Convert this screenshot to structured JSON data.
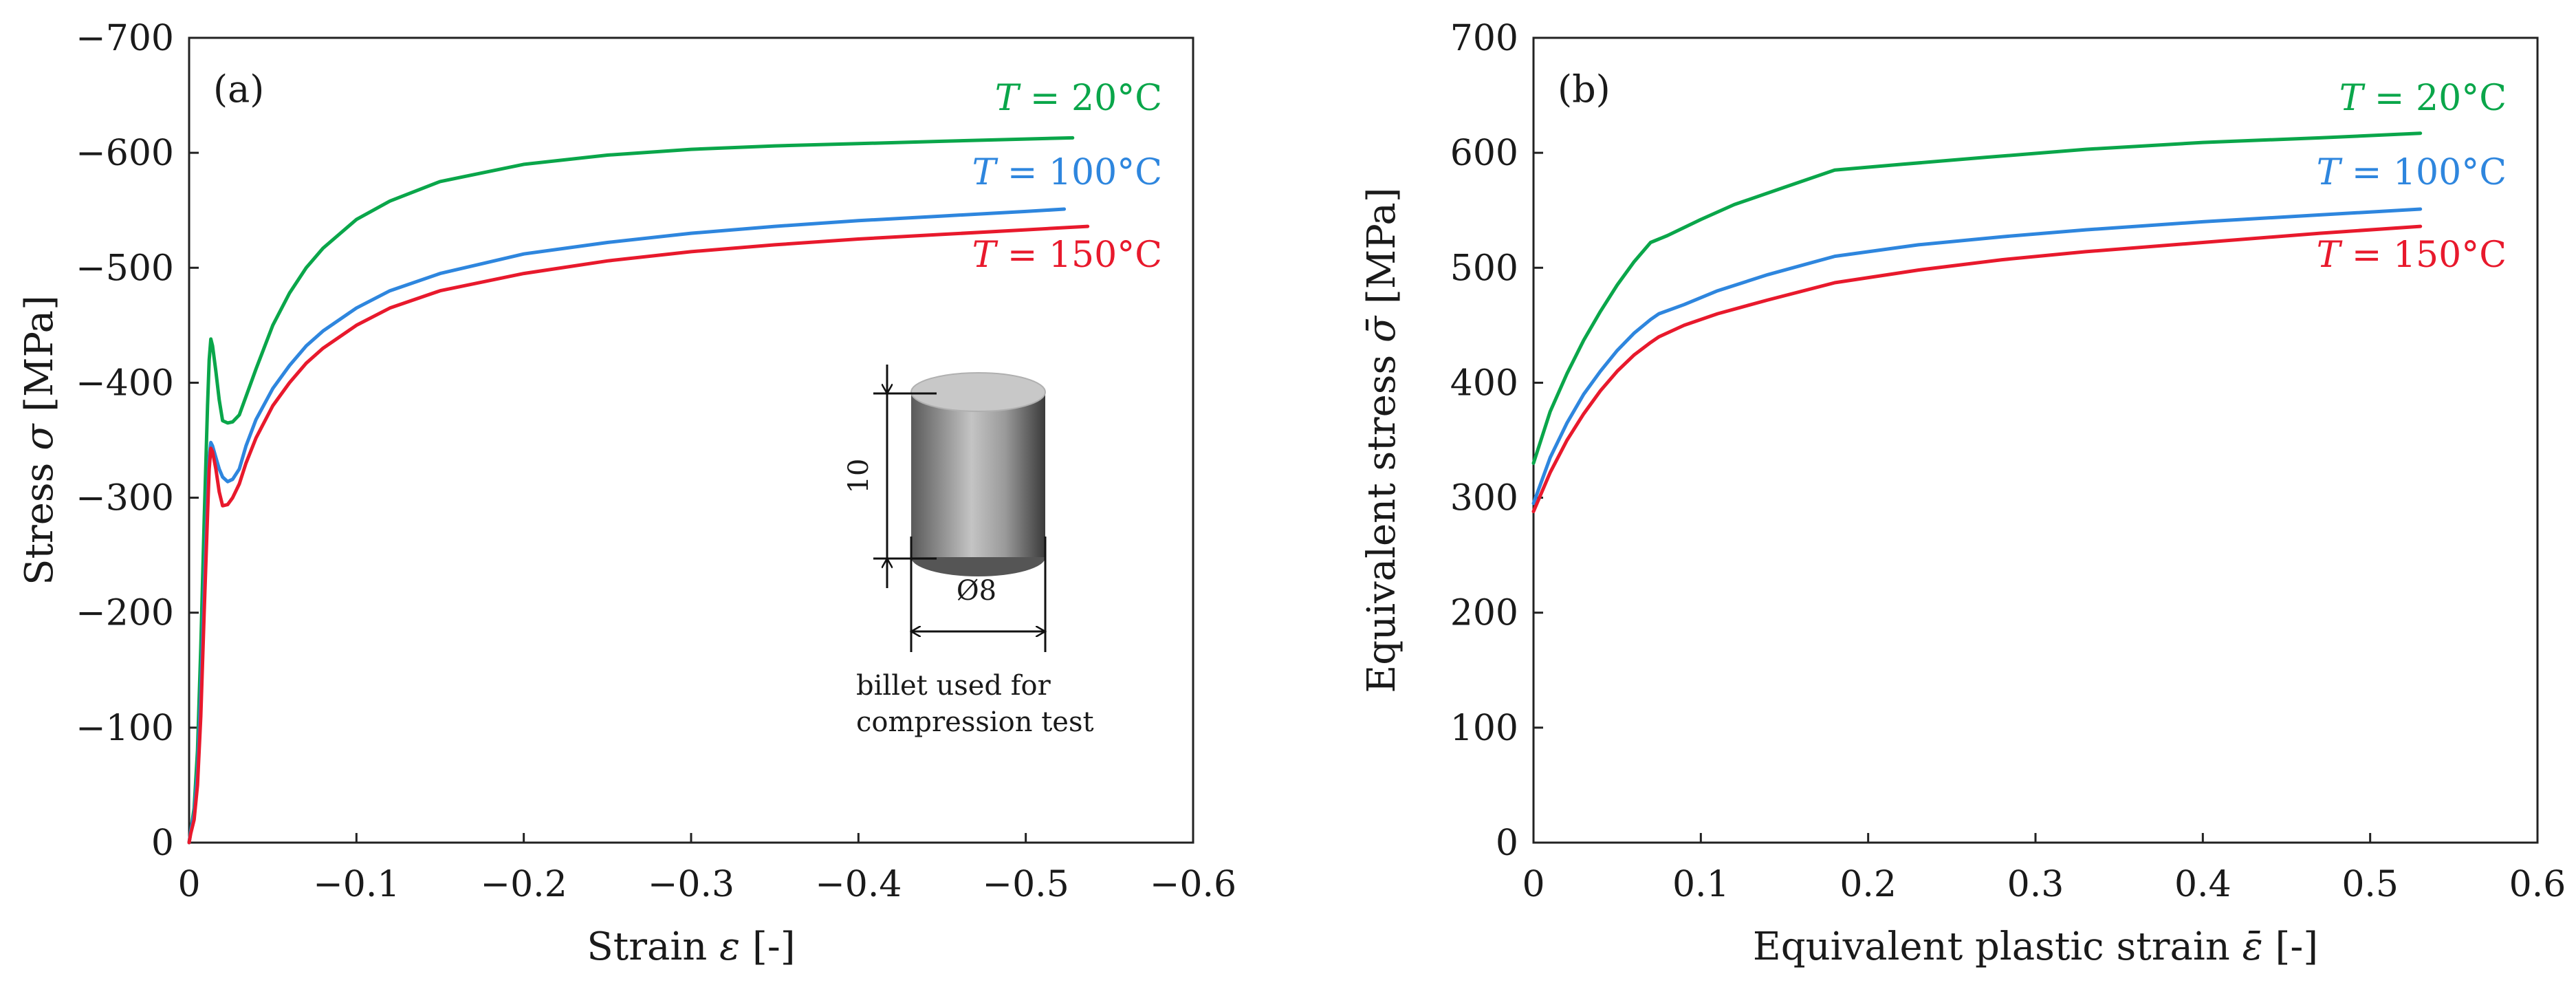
{
  "chart_data": [
    {
      "type": "line",
      "panel_label": "(a)",
      "xlabel": "Strain ε [-]",
      "ylabel": "Stress σ [MPa]",
      "xlim": [
        0,
        -0.6
      ],
      "ylim": [
        0,
        -700
      ],
      "xticks": [
        0,
        -0.1,
        -0.2,
        -0.3,
        -0.4,
        -0.5,
        -0.6
      ],
      "xtick_labels": [
        "0",
        "−0.1",
        "−0.2",
        "−0.3",
        "−0.4",
        "−0.5",
        "−0.6"
      ],
      "yticks": [
        0,
        -100,
        -200,
        -300,
        -400,
        -500,
        -600,
        -700
      ],
      "ytick_labels": [
        "0",
        "−100",
        "−200",
        "−300",
        "−400",
        "−500",
        "−600",
        "−700"
      ],
      "grid": false,
      "series": [
        {
          "name": "T = 20°C",
          "var": "T",
          "rest": " = 20°C",
          "color": "#0aa64a",
          "x": [
            0,
            -0.001,
            -0.003,
            -0.005,
            -0.007,
            -0.009,
            -0.011,
            -0.012,
            -0.013,
            -0.014,
            -0.016,
            -0.018,
            -0.02,
            -0.023,
            -0.026,
            -0.03,
            -0.034,
            -0.04,
            -0.05,
            -0.06,
            -0.07,
            -0.08,
            -0.1,
            -0.12,
            -0.15,
            -0.2,
            -0.25,
            -0.3,
            -0.35,
            -0.4,
            -0.45,
            -0.5,
            -0.528
          ],
          "y": [
            0,
            -10,
            -30,
            -80,
            -170,
            -280,
            -380,
            -420,
            -438,
            -432,
            -410,
            -385,
            -367,
            -365,
            -366,
            -372,
            -388,
            -412,
            -450,
            -478,
            -500,
            -517,
            -542,
            -558,
            -575,
            -590,
            -598,
            -603,
            -606,
            -608,
            -610,
            -612,
            -613
          ]
        },
        {
          "name": "T = 100°C",
          "var": "T",
          "rest": " = 100°C",
          "color": "#2e86de",
          "x": [
            0,
            -0.001,
            -0.003,
            -0.005,
            -0.007,
            -0.009,
            -0.011,
            -0.012,
            -0.013,
            -0.014,
            -0.016,
            -0.018,
            -0.02,
            -0.023,
            -0.026,
            -0.03,
            -0.034,
            -0.04,
            -0.05,
            -0.06,
            -0.07,
            -0.08,
            -0.1,
            -0.12,
            -0.15,
            -0.2,
            -0.25,
            -0.3,
            -0.35,
            -0.4,
            -0.45,
            -0.5,
            -0.523
          ],
          "y": [
            0,
            -10,
            -25,
            -60,
            -130,
            -220,
            -300,
            -335,
            -348,
            -345,
            -335,
            -325,
            -318,
            -314,
            -316,
            -325,
            -345,
            -368,
            -395,
            -415,
            -432,
            -445,
            -465,
            -480,
            -495,
            -512,
            -522,
            -530,
            -536,
            -541,
            -545,
            -549,
            -551
          ]
        },
        {
          "name": "T = 150°C",
          "var": "T",
          "rest": " = 150°C",
          "color": "#e8192c",
          "x": [
            0,
            -0.001,
            -0.003,
            -0.005,
            -0.007,
            -0.009,
            -0.011,
            -0.012,
            -0.013,
            -0.014,
            -0.016,
            -0.018,
            -0.02,
            -0.023,
            -0.026,
            -0.03,
            -0.034,
            -0.04,
            -0.05,
            -0.06,
            -0.07,
            -0.08,
            -0.1,
            -0.12,
            -0.15,
            -0.2,
            -0.25,
            -0.3,
            -0.35,
            -0.4,
            -0.45,
            -0.5,
            -0.537
          ],
          "y": [
            0,
            -8,
            -20,
            -50,
            -110,
            -200,
            -285,
            -325,
            -343,
            -340,
            -325,
            -305,
            -293,
            -294,
            -300,
            -312,
            -330,
            -352,
            -380,
            -400,
            -417,
            -430,
            -450,
            -465,
            -480,
            -495,
            -506,
            -514,
            -520,
            -525,
            -529,
            -533,
            -536
          ]
        }
      ],
      "annotations": {
        "height_label": "10",
        "diameter_label": "Ø8",
        "note_line1": "billet used for",
        "note_line2": "compression test"
      }
    },
    {
      "type": "line",
      "panel_label": "(b)",
      "xlabel_main": "Equivalent plastic strain ",
      "xlabel_symbol": "ε̄",
      "xlabel_unit": " [-]",
      "ylabel_main": "Equivalent stress ",
      "ylabel_symbol": "σ̄",
      "ylabel_unit": " [MPa]",
      "xlim": [
        0,
        0.6
      ],
      "ylim": [
        0,
        700
      ],
      "xticks": [
        0,
        0.1,
        0.2,
        0.3,
        0.4,
        0.5,
        0.6
      ],
      "xtick_labels": [
        "0",
        "0.1",
        "0.2",
        "0.3",
        "0.4",
        "0.5",
        "0.6"
      ],
      "yticks": [
        0,
        100,
        200,
        300,
        400,
        500,
        600,
        700
      ],
      "ytick_labels": [
        "0",
        "100",
        "200",
        "300",
        "400",
        "500",
        "600",
        "700"
      ],
      "grid": false,
      "series": [
        {
          "name": "T = 20°C",
          "var": "T",
          "rest": " = 20°C",
          "color": "#0aa64a",
          "x": [
            0,
            0.01,
            0.02,
            0.03,
            0.04,
            0.05,
            0.06,
            0.07,
            0.08,
            0.1,
            0.12,
            0.15,
            0.18,
            0.22,
            0.27,
            0.33,
            0.4,
            0.47,
            0.53
          ],
          "y": [
            330,
            375,
            408,
            437,
            462,
            485,
            505,
            522,
            528,
            542,
            555,
            570,
            585,
            590,
            596,
            603,
            609,
            613,
            617
          ]
        },
        {
          "name": "T = 100°C",
          "var": "T",
          "rest": " = 100°C",
          "color": "#2e86de",
          "x": [
            0,
            0.01,
            0.02,
            0.03,
            0.04,
            0.05,
            0.06,
            0.07,
            0.075,
            0.09,
            0.11,
            0.14,
            0.18,
            0.23,
            0.28,
            0.33,
            0.4,
            0.47,
            0.53
          ],
          "y": [
            295,
            335,
            365,
            390,
            410,
            428,
            443,
            455,
            460,
            468,
            480,
            494,
            510,
            520,
            527,
            533,
            540,
            546,
            551
          ]
        },
        {
          "name": "T = 150°C",
          "var": "T",
          "rest": " = 150°C",
          "color": "#e8192c",
          "x": [
            0,
            0.01,
            0.02,
            0.03,
            0.04,
            0.05,
            0.06,
            0.07,
            0.075,
            0.09,
            0.11,
            0.14,
            0.18,
            0.23,
            0.28,
            0.33,
            0.4,
            0.47,
            0.53
          ],
          "y": [
            288,
            322,
            350,
            373,
            393,
            410,
            424,
            435,
            440,
            450,
            460,
            472,
            487,
            498,
            507,
            514,
            522,
            530,
            536
          ]
        }
      ]
    }
  ]
}
